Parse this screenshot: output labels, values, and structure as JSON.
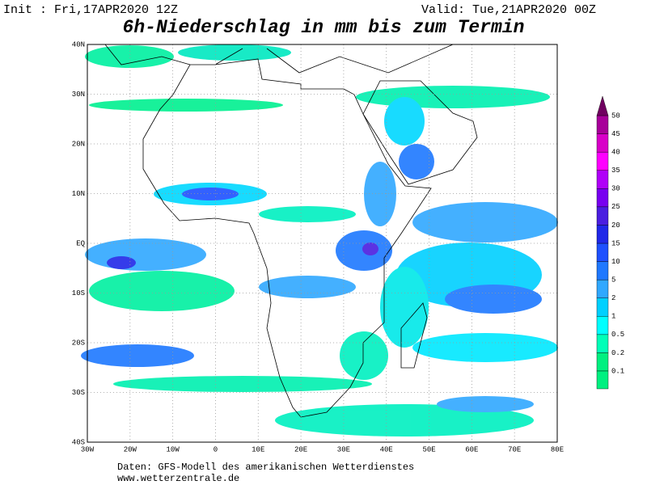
{
  "header": {
    "init": "Init : Fri,17APR2020 12Z",
    "valid": "Valid: Tue,21APR2020 00Z",
    "title": "6h-Niederschlag in mm bis zum Termin"
  },
  "map": {
    "lat_labels": [
      "40N",
      "30N",
      "20N",
      "10N",
      "EQ",
      "10S",
      "20S",
      "30S",
      "40S"
    ],
    "lon_labels": [
      "30W",
      "20W",
      "10W",
      "0",
      "10E",
      "20E",
      "30E",
      "40E",
      "50E",
      "60E",
      "70E",
      "80E"
    ]
  },
  "legend": {
    "levels": [
      0.1,
      0.2,
      0.5,
      1,
      2,
      5,
      10,
      15,
      20,
      25,
      30,
      35,
      40,
      45,
      50
    ],
    "colors": [
      "#00f080",
      "#00ffb8",
      "#00ffff",
      "#00d0ff",
      "#30a8ff",
      "#1f78ff",
      "#1e50ff",
      "#2028e8",
      "#4a1ee0",
      "#7800f0",
      "#b000f8",
      "#ff00ff",
      "#d800c8",
      "#a8009a",
      "#700060"
    ]
  },
  "footer": {
    "source": "Daten: GFS-Modell des amerikanischen Wetterdienstes",
    "url": "www.wetterzentrale.de"
  }
}
